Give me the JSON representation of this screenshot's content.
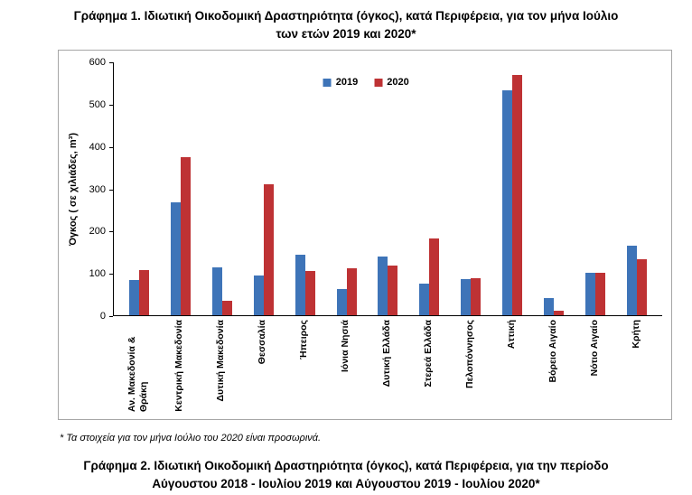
{
  "page": {
    "title1_line1": "Γράφημα 1. Ιδιωτική Οικοδομική Δραστηριότητα (όγκος), κατά Περιφέρεια, για τον μήνα  Ιούλιο",
    "title1_line2": "των ετών 2019 και 2020*",
    "footnote": "* Τα στοιχεία για τον μήνα Ιούλιο του 2020 είναι προσωρινά.",
    "title2_line1": "Γράφημα 2. Ιδιωτική Οικοδομική Δραστηριότητα (όγκος), κατά Περιφέρεια, για την περίοδο",
    "title2_line2": "Αύγουστου 2018 - Ιουλίου 2019 και Αύγουστου 2019 - Ιουλίου 2020*"
  },
  "chart_data": {
    "type": "bar",
    "title": "",
    "xlabel": "",
    "ylabel": "Όγκος ( σε χιλιάδες,  m³)",
    "ylim": [
      0,
      600
    ],
    "yticks": [
      0,
      100,
      200,
      300,
      400,
      500,
      600
    ],
    "grid": false,
    "legend_position": "top-center",
    "categories": [
      "Αν. Μακεδονία & Θράκη",
      "Κεντρική Μακεδονία",
      "Δυτική Μακεδονία",
      "Θεσσαλία",
      "Ήπειρος",
      "Ιόνια Νησιά",
      "Δυτική Ελλάδα",
      "Στερεά Ελλάδα",
      "Πελοπόννησος",
      "Αττική",
      "Βόρειο Αιγαίο",
      "Νότιο Αιγαίο",
      "Κρήτη"
    ],
    "series": [
      {
        "name": "2019",
        "color": "#3E74B8",
        "values": [
          84,
          268,
          113,
          94,
          143,
          63,
          140,
          75,
          85,
          533,
          40,
          100,
          165
        ]
      },
      {
        "name": "2020",
        "color": "#BE3234",
        "values": [
          107,
          375,
          34,
          310,
          105,
          112,
          117,
          182,
          87,
          570,
          10,
          100,
          133
        ]
      }
    ]
  }
}
